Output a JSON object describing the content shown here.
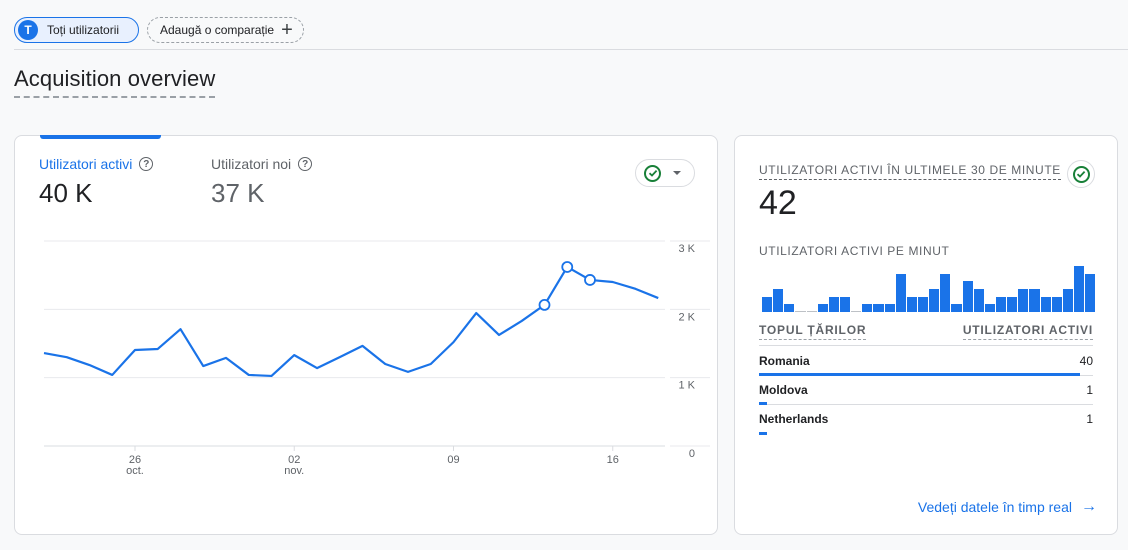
{
  "comparison_bar": {
    "segment_initial": "T",
    "segment_label": "Toți utilizatorii",
    "add_comparison_label": "Adaugă o comparație",
    "add_icon": "+"
  },
  "page": {
    "title": "Acquisition overview"
  },
  "overview_card": {
    "metrics": [
      {
        "label": "Utilizatori activi",
        "value": "40 K",
        "selected": true
      },
      {
        "label": "Utilizatori noi",
        "value": "37 K",
        "selected": false
      }
    ],
    "help_icon": "?",
    "status_icon": "check-circle",
    "accent_color": "#1a73e8"
  },
  "chart_data": {
    "type": "line",
    "title": "Utilizatori activi",
    "xlabel": "",
    "ylabel": "",
    "ylim": [
      0,
      3000
    ],
    "y_ticks": [
      "0",
      "1 K",
      "2 K",
      "3 K"
    ],
    "x_ticks": [
      {
        "day": "26",
        "month": "oct.",
        "index": 4
      },
      {
        "day": "02",
        "month": "nov.",
        "index": 11
      },
      {
        "day": "09",
        "month": "",
        "index": 18
      },
      {
        "day": "16",
        "month": "",
        "index": 25
      }
    ],
    "grid": true,
    "series": [
      {
        "name": "Utilizatori activi",
        "color": "#1a73e8",
        "values": [
          1360,
          1300,
          1185,
          1040,
          1405,
          1420,
          1710,
          1170,
          1290,
          1040,
          1025,
          1330,
          1140,
          1300,
          1465,
          1200,
          1085,
          1200,
          1520,
          1945,
          1625,
          1830,
          2065,
          2620,
          2430,
          2400,
          2300,
          2165
        ],
        "highlighted_points": [
          22,
          23,
          24
        ]
      }
    ]
  },
  "realtime_card": {
    "title": "UTILIZATORI ACTIVI ÎN ULTIMELE 30 DE MINUTE",
    "value": "42",
    "per_minute_label": "UTILIZATORI ACTIVI PE MINUT",
    "per_minute_values": [
      2,
      3,
      1,
      0,
      0,
      1,
      2,
      2,
      0,
      1,
      1,
      1,
      5,
      2,
      2,
      3,
      5,
      1,
      4,
      3,
      1,
      2,
      2,
      3,
      3,
      2,
      2,
      3,
      6,
      5
    ],
    "table": {
      "col_country": "TOPUL ȚĂRILOR",
      "col_users": "UTILIZATORI ACTIVI",
      "rows": [
        {
          "country": "Romania",
          "users": "40",
          "share": 0.955
        },
        {
          "country": "Moldova",
          "users": "1",
          "share": 0.024
        },
        {
          "country": "Netherlands",
          "users": "1",
          "share": 0.024
        }
      ]
    },
    "link_label": "Vedeți datele în timp real",
    "link_icon": "→"
  }
}
